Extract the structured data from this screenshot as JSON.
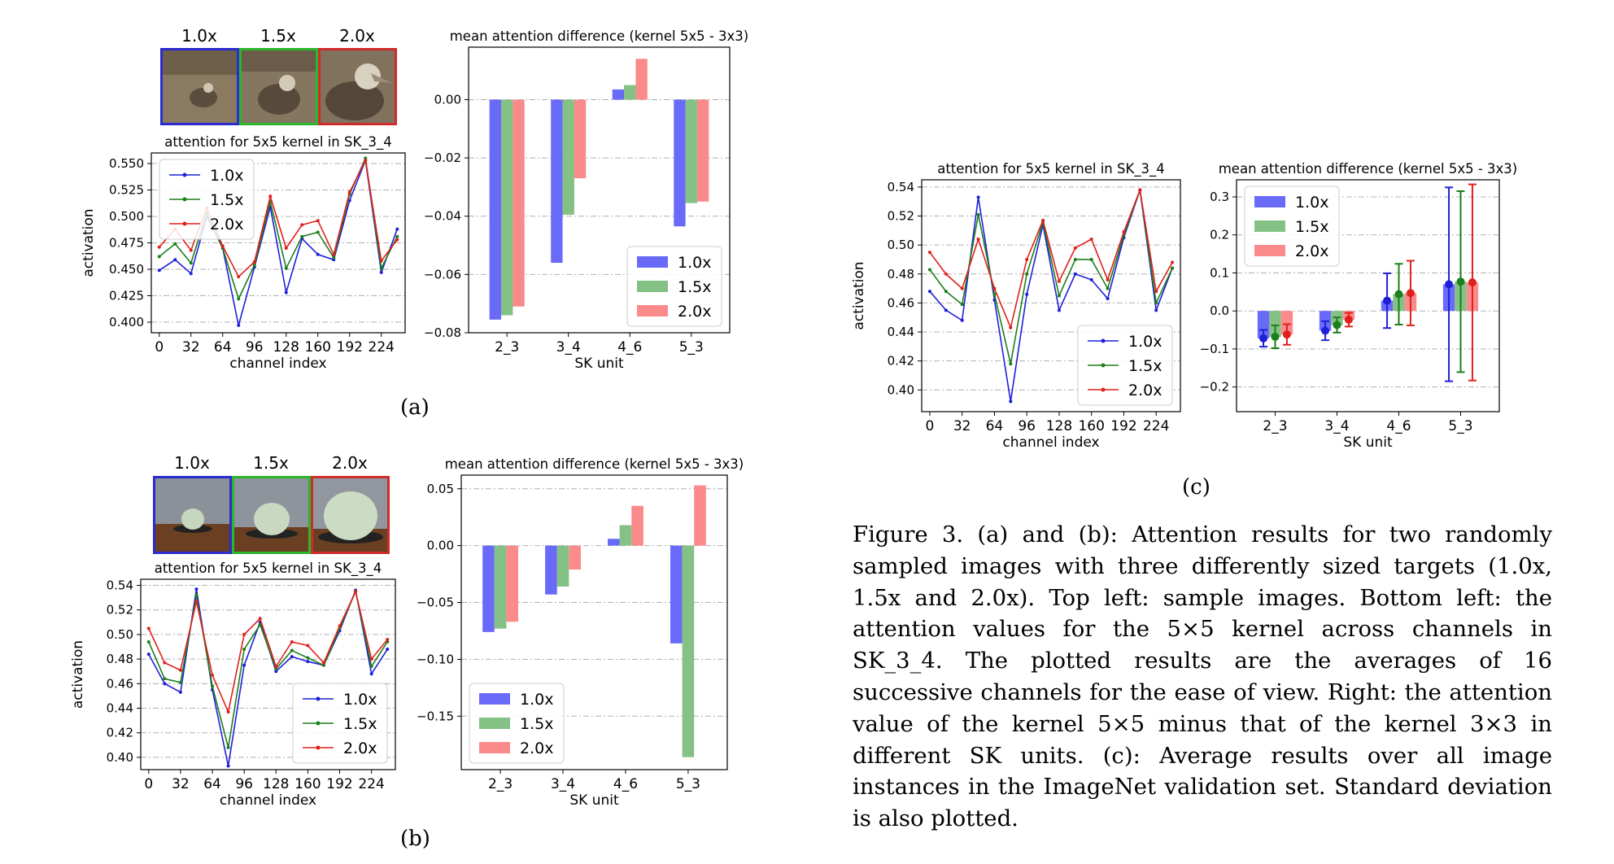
{
  "panels": {
    "a": {
      "label": "(a)",
      "thumbs": [
        {
          "label": "1.0x",
          "color": "#2b2bd0"
        },
        {
          "label": "1.5x",
          "color": "#2bb62b"
        },
        {
          "label": "2.0x",
          "color": "#d02b2b"
        }
      ]
    },
    "b": {
      "label": "(b)",
      "thumbs": [
        {
          "label": "1.0x",
          "color": "#2b2bd0"
        },
        {
          "label": "1.5x",
          "color": "#2bb62b"
        },
        {
          "label": "2.0x",
          "color": "#d02b2b"
        }
      ]
    },
    "c": {
      "label": "(c)"
    }
  },
  "caption": "Figure 3. (a) and (b): Attention results for two randomly sampled images with three differently sized targets (1.0x, 1.5x and 2.0x). Top left: sample images. Bottom left: the attention values for the 5×5 kernel across channels in SK_3_4. The plotted results are the averages of 16 successive channels for the ease of view. Right: the attention value of the kernel 5×5 minus that of the kernel 3×3 in different SK units. (c): Average results over all image instances in the ImageNet validation set. Standard deviation is also plotted.",
  "chart_data": [
    {
      "id": "a-line",
      "type": "line",
      "title": "attention for 5x5 kernel in SK_3_4",
      "xlabel": "channel index",
      "ylabel": "activation",
      "xlim": [
        -8,
        248
      ],
      "ylim": [
        0.39,
        0.56
      ],
      "xticks": [
        0,
        32,
        64,
        96,
        128,
        160,
        192,
        224
      ],
      "yticks": [
        0.4,
        0.425,
        0.45,
        0.475,
        0.5,
        0.525,
        0.55
      ],
      "ytick_labels": [
        "0.400",
        "0.425",
        "0.450",
        "0.475",
        "0.500",
        "0.525",
        "0.550"
      ],
      "legend": "upper left",
      "x": [
        0,
        16,
        32,
        48,
        64,
        80,
        96,
        112,
        128,
        144,
        160,
        176,
        192,
        208,
        224,
        240
      ],
      "series": [
        {
          "name": "1.0x",
          "color": "#1f1fd9",
          "values": [
            0.449,
            0.459,
            0.446,
            0.5,
            0.47,
            0.397,
            0.452,
            0.509,
            0.428,
            0.479,
            0.464,
            0.459,
            0.515,
            0.553,
            0.447,
            0.488
          ]
        },
        {
          "name": "1.5x",
          "color": "#1b7f1b",
          "values": [
            0.462,
            0.474,
            0.456,
            0.503,
            0.47,
            0.422,
            0.454,
            0.514,
            0.451,
            0.481,
            0.485,
            0.461,
            0.521,
            0.555,
            0.451,
            0.481
          ]
        },
        {
          "name": "2.0x",
          "color": "#e0201c",
          "values": [
            0.471,
            0.488,
            0.468,
            0.508,
            0.472,
            0.443,
            0.457,
            0.519,
            0.47,
            0.492,
            0.496,
            0.464,
            0.523,
            0.553,
            0.458,
            0.478
          ]
        }
      ]
    },
    {
      "id": "a-bar",
      "type": "bar",
      "title": "mean attention difference (kernel 5x5 - 3x3)",
      "xlabel": "SK unit",
      "ylabel": "",
      "ylim": [
        -0.08,
        0.018
      ],
      "yticks": [
        -0.08,
        -0.06,
        -0.04,
        -0.02,
        0.0
      ],
      "ytick_labels": [
        "−0.08",
        "−0.06",
        "−0.04",
        "−0.02",
        "0.00"
      ],
      "legend": "lower right",
      "categories": [
        "2_3",
        "3_4",
        "4_6",
        "5_3"
      ],
      "series": [
        {
          "name": "1.0x",
          "color": "#6a6af9",
          "values": [
            -0.0755,
            -0.056,
            0.0035,
            -0.0435
          ]
        },
        {
          "name": "1.5x",
          "color": "#84c184",
          "values": [
            -0.074,
            -0.0395,
            0.005,
            -0.0355
          ]
        },
        {
          "name": "2.0x",
          "color": "#fb8b8b",
          "values": [
            -0.071,
            -0.027,
            0.014,
            -0.035
          ]
        }
      ]
    },
    {
      "id": "b-line",
      "type": "line",
      "title": "attention for 5x5 kernel in SK_3_4",
      "xlabel": "channel index",
      "ylabel": "activation",
      "xlim": [
        -8,
        248
      ],
      "ylim": [
        0.39,
        0.545
      ],
      "xticks": [
        0,
        32,
        64,
        96,
        128,
        160,
        192,
        224
      ],
      "yticks": [
        0.4,
        0.42,
        0.44,
        0.46,
        0.48,
        0.5,
        0.52,
        0.54
      ],
      "ytick_labels": [
        "0.40",
        "0.42",
        "0.44",
        "0.46",
        "0.48",
        "0.50",
        "0.52",
        "0.54"
      ],
      "legend": "lower right",
      "x": [
        0,
        16,
        32,
        48,
        64,
        80,
        96,
        112,
        128,
        144,
        160,
        176,
        192,
        208,
        224,
        240
      ],
      "series": [
        {
          "name": "1.0x",
          "color": "#1f1fd9",
          "values": [
            0.484,
            0.46,
            0.453,
            0.537,
            0.455,
            0.393,
            0.475,
            0.51,
            0.47,
            0.482,
            0.478,
            0.475,
            0.503,
            0.536,
            0.468,
            0.488
          ]
        },
        {
          "name": "1.5x",
          "color": "#1b7f1b",
          "values": [
            0.494,
            0.464,
            0.461,
            0.532,
            0.458,
            0.408,
            0.488,
            0.508,
            0.472,
            0.487,
            0.481,
            0.475,
            0.505,
            0.535,
            0.474,
            0.494
          ]
        },
        {
          "name": "2.0x",
          "color": "#e0201c",
          "values": [
            0.505,
            0.477,
            0.471,
            0.527,
            0.467,
            0.437,
            0.5,
            0.513,
            0.474,
            0.494,
            0.491,
            0.477,
            0.507,
            0.535,
            0.48,
            0.496
          ]
        }
      ]
    },
    {
      "id": "b-bar",
      "type": "bar",
      "title": "mean attention difference (kernel 5x5 - 3x3)",
      "xlabel": "SK unit",
      "ylabel": "",
      "ylim": [
        -0.197,
        0.062
      ],
      "yticks": [
        -0.15,
        -0.1,
        -0.05,
        0.0,
        0.05
      ],
      "ytick_labels": [
        "−0.15",
        "−0.10",
        "−0.05",
        "0.00",
        "0.05"
      ],
      "legend": "lower left",
      "categories": [
        "2_3",
        "3_4",
        "4_6",
        "5_3"
      ],
      "series": [
        {
          "name": "1.0x",
          "color": "#6a6af9",
          "values": [
            -0.076,
            -0.043,
            0.006,
            -0.086
          ]
        },
        {
          "name": "1.5x",
          "color": "#84c184",
          "values": [
            -0.073,
            -0.036,
            0.018,
            -0.186
          ]
        },
        {
          "name": "2.0x",
          "color": "#fb8b8b",
          "values": [
            -0.067,
            -0.021,
            0.035,
            0.053
          ]
        }
      ]
    },
    {
      "id": "c-line",
      "type": "line",
      "title": "attention for 5x5 kernel in SK_3_4",
      "xlabel": "channel index",
      "ylabel": "activation",
      "xlim": [
        -8,
        248
      ],
      "ylim": [
        0.385,
        0.545
      ],
      "xticks": [
        0,
        32,
        64,
        96,
        128,
        160,
        192,
        224
      ],
      "yticks": [
        0.4,
        0.42,
        0.44,
        0.46,
        0.48,
        0.5,
        0.52,
        0.54
      ],
      "ytick_labels": [
        "0.40",
        "0.42",
        "0.44",
        "0.46",
        "0.48",
        "0.50",
        "0.52",
        "0.54"
      ],
      "legend": "lower right",
      "x": [
        0,
        16,
        32,
        48,
        64,
        80,
        96,
        112,
        128,
        144,
        160,
        176,
        192,
        208,
        224,
        240
      ],
      "series": [
        {
          "name": "1.0x",
          "color": "#1f1fd9",
          "values": [
            0.468,
            0.455,
            0.448,
            0.533,
            0.462,
            0.392,
            0.466,
            0.514,
            0.455,
            0.48,
            0.476,
            0.463,
            0.505,
            0.538,
            0.455,
            0.484
          ]
        },
        {
          "name": "1.5x",
          "color": "#1b7f1b",
          "values": [
            0.483,
            0.468,
            0.459,
            0.521,
            0.466,
            0.418,
            0.48,
            0.516,
            0.465,
            0.49,
            0.49,
            0.47,
            0.507,
            0.538,
            0.46,
            0.484
          ]
        },
        {
          "name": "2.0x",
          "color": "#e0201c",
          "values": [
            0.495,
            0.48,
            0.47,
            0.504,
            0.47,
            0.443,
            0.49,
            0.517,
            0.475,
            0.498,
            0.504,
            0.476,
            0.509,
            0.538,
            0.468,
            0.488
          ]
        }
      ]
    },
    {
      "id": "c-bar",
      "type": "bar",
      "title": "mean attention difference (kernel 5x5 - 3x3)",
      "xlabel": "SK unit",
      "ylabel": "",
      "ylim": [
        -0.265,
        0.345
      ],
      "yticks": [
        -0.2,
        -0.1,
        0.0,
        0.1,
        0.2,
        0.3
      ],
      "ytick_labels": [
        "−0.2",
        "−0.1",
        "0.0",
        "0.1",
        "0.2",
        "0.3"
      ],
      "legend": "upper left",
      "error_bars": true,
      "categories": [
        "2_3",
        "3_4",
        "4_6",
        "5_3"
      ],
      "series": [
        {
          "name": "1.0x",
          "color": "#6a6af9",
          "dot_color": "#1f1fd9",
          "values": [
            -0.072,
            -0.052,
            0.027,
            0.07
          ],
          "std": [
            0.022,
            0.025,
            0.072,
            0.255
          ]
        },
        {
          "name": "1.5x",
          "color": "#84c184",
          "dot_color": "#1b7f1b",
          "values": [
            -0.068,
            -0.037,
            0.044,
            0.077
          ],
          "std": [
            0.03,
            0.02,
            0.08,
            0.238
          ]
        },
        {
          "name": "2.0x",
          "color": "#fb8b8b",
          "dot_color": "#e0201c",
          "values": [
            -0.062,
            -0.023,
            0.047,
            0.075
          ],
          "std": [
            0.027,
            0.018,
            0.085,
            0.258
          ]
        }
      ]
    }
  ]
}
